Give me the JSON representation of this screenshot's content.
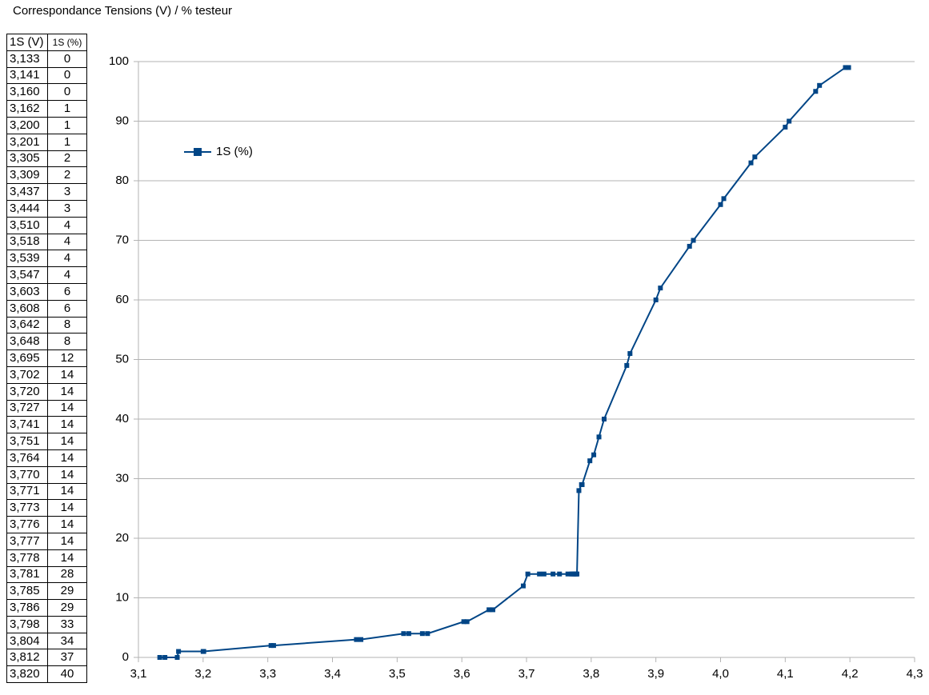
{
  "title": "Correspondance Tensions (V) / % testeur",
  "table": {
    "header": [
      "1S (V)",
      "1S (%)"
    ],
    "rows": [
      [
        "3,133",
        0
      ],
      [
        "3,141",
        0
      ],
      [
        "3,160",
        0
      ],
      [
        "3,162",
        1
      ],
      [
        "3,200",
        1
      ],
      [
        "3,201",
        1
      ],
      [
        "3,305",
        2
      ],
      [
        "3,309",
        2
      ],
      [
        "3,437",
        3
      ],
      [
        "3,444",
        3
      ],
      [
        "3,510",
        4
      ],
      [
        "3,518",
        4
      ],
      [
        "3,539",
        4
      ],
      [
        "3,547",
        4
      ],
      [
        "3,603",
        6
      ],
      [
        "3,608",
        6
      ],
      [
        "3,642",
        8
      ],
      [
        "3,648",
        8
      ],
      [
        "3,695",
        12
      ],
      [
        "3,702",
        14
      ],
      [
        "3,720",
        14
      ],
      [
        "3,727",
        14
      ],
      [
        "3,741",
        14
      ],
      [
        "3,751",
        14
      ],
      [
        "3,764",
        14
      ],
      [
        "3,770",
        14
      ],
      [
        "3,771",
        14
      ],
      [
        "3,773",
        14
      ],
      [
        "3,776",
        14
      ],
      [
        "3,777",
        14
      ],
      [
        "3,778",
        14
      ],
      [
        "3,781",
        28
      ],
      [
        "3,785",
        29
      ],
      [
        "3,786",
        29
      ],
      [
        "3,798",
        33
      ],
      [
        "3,804",
        34
      ],
      [
        "3,812",
        37
      ],
      [
        "3,820",
        40
      ]
    ]
  },
  "chart_data": {
    "type": "line",
    "x": [
      3.133,
      3.141,
      3.16,
      3.162,
      3.2,
      3.201,
      3.305,
      3.309,
      3.437,
      3.444,
      3.51,
      3.518,
      3.539,
      3.547,
      3.603,
      3.608,
      3.642,
      3.648,
      3.695,
      3.702,
      3.72,
      3.727,
      3.741,
      3.751,
      3.764,
      3.77,
      3.771,
      3.773,
      3.776,
      3.777,
      3.778,
      3.781,
      3.785,
      3.786,
      3.798,
      3.804,
      3.812,
      3.82,
      3.855,
      3.86,
      3.9,
      3.907,
      3.952,
      3.958,
      4.0,
      4.005,
      4.047,
      4.053,
      4.1,
      4.106,
      4.147,
      4.153,
      4.193,
      4.198
    ],
    "series": [
      {
        "name": "1S (%)",
        "color": "#004586",
        "values": [
          0,
          0,
          0,
          1,
          1,
          1,
          2,
          2,
          3,
          3,
          4,
          4,
          4,
          4,
          6,
          6,
          8,
          8,
          12,
          14,
          14,
          14,
          14,
          14,
          14,
          14,
          14,
          14,
          14,
          14,
          14,
          28,
          29,
          29,
          33,
          34,
          37,
          40,
          49,
          51,
          60,
          62,
          69,
          70,
          76,
          77,
          83,
          84,
          89,
          90,
          95,
          96,
          99,
          99
        ]
      }
    ],
    "xlim": [
      3.1,
      4.3
    ],
    "xticks": [
      {
        "value": 3.1,
        "label": "3,1"
      },
      {
        "value": 3.2,
        "label": "3,2"
      },
      {
        "value": 3.3,
        "label": "3,3"
      },
      {
        "value": 3.4,
        "label": "3,4"
      },
      {
        "value": 3.5,
        "label": "3,5"
      },
      {
        "value": 3.6,
        "label": "3,6"
      },
      {
        "value": 3.7,
        "label": "3,7"
      },
      {
        "value": 3.8,
        "label": "3,8"
      },
      {
        "value": 3.9,
        "label": "3,9"
      },
      {
        "value": 4.0,
        "label": "4,0"
      },
      {
        "value": 4.1,
        "label": "4,1"
      },
      {
        "value": 4.2,
        "label": "4,2"
      },
      {
        "value": 4.3,
        "label": "4,3"
      }
    ],
    "ylim": [
      0,
      100
    ],
    "yticks": [
      0,
      10,
      20,
      30,
      40,
      50,
      60,
      70,
      80,
      90,
      100
    ],
    "grid": true,
    "legend": "top-left"
  }
}
